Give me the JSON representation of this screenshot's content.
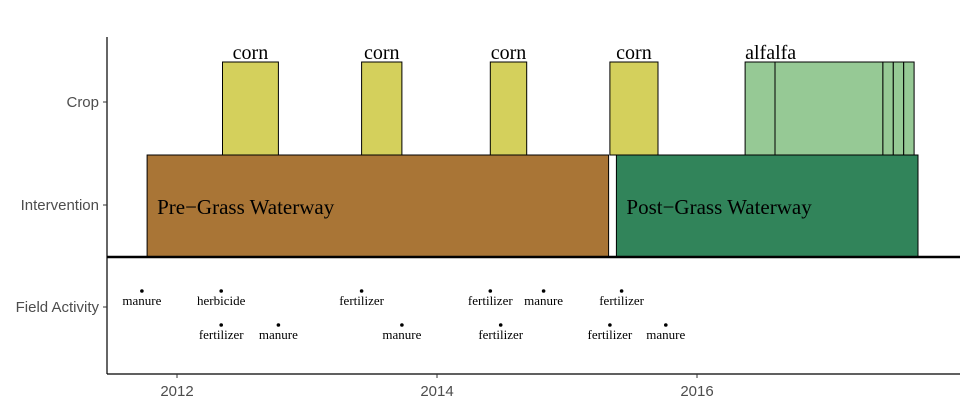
{
  "chart_data": {
    "type": "timeline",
    "title": "",
    "xlabel": "",
    "ylabel": "",
    "xlim": [
      2011.0,
      2018.0
    ],
    "x_ticks": [
      {
        "value": 2012,
        "label": "2012"
      },
      {
        "value": 2014,
        "label": "2014"
      },
      {
        "value": 2016,
        "label": "2016"
      }
    ],
    "rows": [
      "Crop",
      "Intervention",
      "Field Activity"
    ],
    "crops": [
      {
        "label": "corn",
        "start": 2012.35,
        "end": 2012.78,
        "color": "#d4d05c"
      },
      {
        "label": "corn",
        "start": 2013.42,
        "end": 2013.73,
        "color": "#d4d05c"
      },
      {
        "label": "corn",
        "start": 2014.41,
        "end": 2014.69,
        "color": "#d4d05c"
      },
      {
        "label": "corn",
        "start": 2015.33,
        "end": 2015.7,
        "color": "#d4d05c"
      },
      {
        "label": "alfalfa",
        "start": 2016.37,
        "end": 2016.6,
        "color": "#96c995"
      },
      {
        "label": "",
        "start": 2016.6,
        "end": 2017.43,
        "color": "#96c995"
      },
      {
        "label": "",
        "start": 2017.43,
        "end": 2017.51,
        "color": "#96c995"
      },
      {
        "label": "",
        "start": 2017.51,
        "end": 2017.59,
        "color": "#96c995"
      },
      {
        "label": "",
        "start": 2017.59,
        "end": 2017.67,
        "color": "#96c995"
      }
    ],
    "interventions": [
      {
        "label": "Pre−Grass Waterway",
        "start": 2011.77,
        "end": 2015.32,
        "color": "#a97536"
      },
      {
        "label": "Post−Grass Waterway",
        "start": 2015.38,
        "end": 2017.7,
        "color": "#31845a"
      }
    ],
    "activities": [
      {
        "label": "manure",
        "date": 2011.73,
        "lane": 0
      },
      {
        "label": "herbicide",
        "date": 2012.34,
        "lane": 0
      },
      {
        "label": "fertilizer",
        "date": 2012.34,
        "lane": 1
      },
      {
        "label": "manure",
        "date": 2012.78,
        "lane": 1
      },
      {
        "label": "fertilizer",
        "date": 2013.42,
        "lane": 0
      },
      {
        "label": "manure",
        "date": 2013.73,
        "lane": 1
      },
      {
        "label": "fertilizer",
        "date": 2014.41,
        "lane": 0
      },
      {
        "label": "fertilizer",
        "date": 2014.49,
        "lane": 1
      },
      {
        "label": "manure",
        "date": 2014.82,
        "lane": 0
      },
      {
        "label": "fertilizer",
        "date": 2015.33,
        "lane": 1
      },
      {
        "label": "fertilizer",
        "date": 2015.42,
        "lane": 0
      },
      {
        "label": "manure",
        "date": 2015.76,
        "lane": 1
      }
    ]
  }
}
